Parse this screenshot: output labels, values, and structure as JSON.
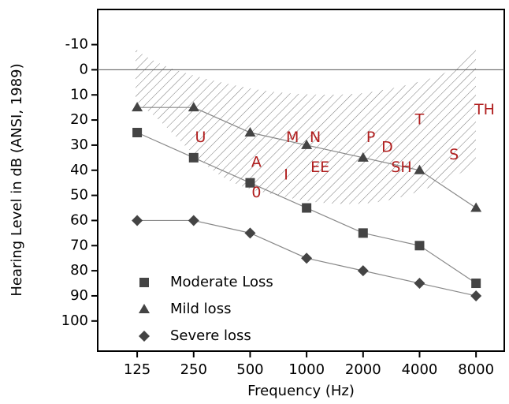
{
  "chart_data": {
    "type": "line",
    "x_label": "Frequency (Hz)",
    "y_label": "Hearing Level in dB (ANSI, 1989)",
    "x": [
      125,
      250,
      500,
      1000,
      2000,
      4000,
      8000
    ],
    "xscale": "log",
    "xlim": [
      77,
      11314
    ],
    "xticks": [
      125,
      250,
      500,
      1000,
      2000,
      4000,
      8000
    ],
    "ylim": [
      -24,
      112
    ],
    "y_reversed": true,
    "yticks": [
      -10,
      0,
      10,
      20,
      30,
      40,
      50,
      60,
      70,
      80,
      90,
      100
    ],
    "hline": 0,
    "legend": "lower left",
    "series": [
      {
        "name": "Moderate Loss",
        "marker": "square",
        "color": "#444444",
        "values": [
          25,
          35,
          45,
          55,
          65,
          70,
          85
        ]
      },
      {
        "name": "Mild loss",
        "marker": "triangle",
        "color": "#444444",
        "values": [
          15,
          15,
          25,
          30,
          35,
          40,
          55
        ]
      },
      {
        "name": "Severe loss",
        "marker": "diamond",
        "color": "#444444",
        "values": [
          60,
          60,
          65,
          75,
          80,
          85,
          90
        ]
      }
    ],
    "line_color": "#888888",
    "annotation_color": "#b01e1e",
    "annotations": [
      {
        "text": "U",
        "x": 272,
        "y": 27
      },
      {
        "text": "A",
        "x": 540,
        "y": 37
      },
      {
        "text": "0",
        "x": 540,
        "y": 49
      },
      {
        "text": "I",
        "x": 777,
        "y": 42
      },
      {
        "text": "M",
        "x": 841,
        "y": 27
      },
      {
        "text": "N",
        "x": 1112,
        "y": 27
      },
      {
        "text": "EE",
        "x": 1178,
        "y": 39
      },
      {
        "text": "P",
        "x": 2200,
        "y": 27
      },
      {
        "text": "D",
        "x": 2690,
        "y": 31
      },
      {
        "text": "SH",
        "x": 3204,
        "y": 39
      },
      {
        "text": "T",
        "x": 4000,
        "y": 20
      },
      {
        "text": "S",
        "x": 6100,
        "y": 34
      },
      {
        "text": "TH",
        "x": 8880,
        "y": 16
      }
    ]
  }
}
